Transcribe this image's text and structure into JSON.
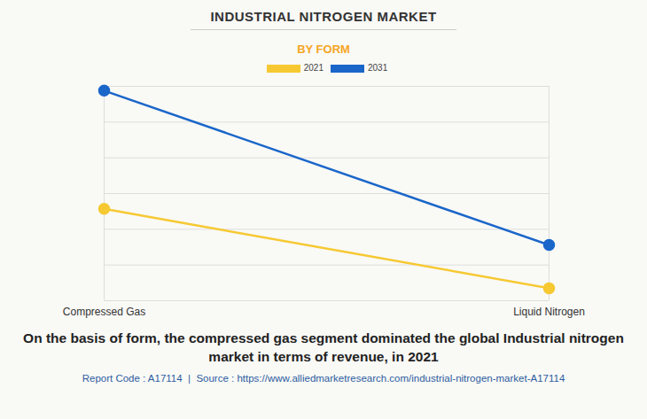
{
  "chart_data": {
    "type": "line",
    "title": "INDUSTRIAL NITROGEN MARKET",
    "subtitle": "BY FORM",
    "caption": "On the basis of form, the compressed gas segment dominated the global Industrial nitrogen market in terms of revenue, in 2021",
    "footer": "Report Code : A17114  |  Source : https://www.alliedmarketresearch.com/industrial-nitrogen-market-A17114",
    "categories": [
      "Compressed Gas",
      "Liquid Nitrogen"
    ],
    "series": [
      {
        "name": "2021",
        "color": "#f6c932",
        "values": [
          2.57,
          0.35
        ],
        "marker": "circle"
      },
      {
        "name": "2031",
        "color": "#1a66c9",
        "values": [
          5.88,
          1.56
        ],
        "marker": "circle"
      }
    ],
    "ylim": [
      0,
      6
    ],
    "yticks": [
      0,
      1,
      2,
      3,
      4,
      5,
      6
    ],
    "grid": true,
    "tick_labels": "x",
    "legend": "top"
  }
}
